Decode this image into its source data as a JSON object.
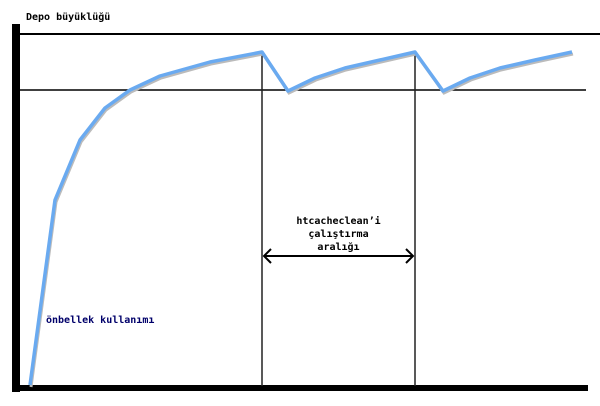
{
  "labels": {
    "y_axis": "Depo büyüklüğü",
    "curve": "önbellek kullanımı",
    "interval_line1": "htcacheclean’i",
    "interval_line2": "çalıştırma",
    "interval_line3": "aralığı"
  },
  "colors": {
    "curve": "#6aaaf0",
    "axes": "#000000"
  }
}
